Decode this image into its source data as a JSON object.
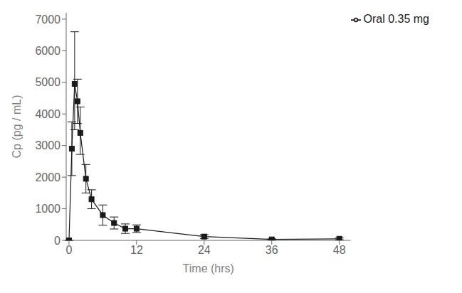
{
  "chart_data": {
    "type": "line",
    "xlabel": "Time (hrs)",
    "ylabel": "Cp (pg / mL)",
    "x": [
      0,
      0.5,
      1,
      1.5,
      2,
      3,
      4,
      6,
      8,
      10,
      12,
      24,
      36,
      48
    ],
    "series": [
      {
        "name": "Oral 0.35 mg",
        "color": "#1a1a1a",
        "marker": "square",
        "values": [
          0,
          2900,
          4950,
          4400,
          3400,
          1950,
          1300,
          800,
          550,
          370,
          370,
          120,
          30,
          50
        ],
        "error_low": [
          0,
          850,
          1450,
          700,
          680,
          450,
          300,
          320,
          190,
          150,
          120,
          60,
          20,
          30
        ],
        "error_high": [
          0,
          850,
          1650,
          700,
          820,
          450,
          300,
          320,
          190,
          150,
          120,
          60,
          20,
          30
        ]
      }
    ],
    "xlim": [
      -0.5,
      50
    ],
    "ylim": [
      0,
      7200
    ],
    "xticks": [
      0,
      12,
      24,
      36,
      48
    ],
    "yticks": [
      0,
      1000,
      2000,
      3000,
      4000,
      5000,
      6000,
      7000
    ],
    "grid": false,
    "legend": "upper right"
  }
}
